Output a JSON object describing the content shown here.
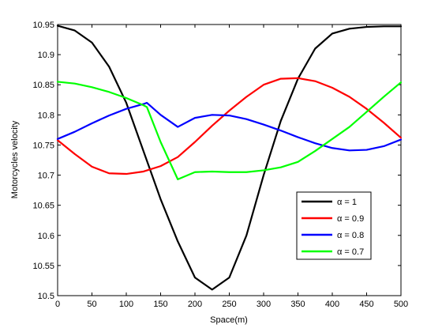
{
  "chart_data": {
    "type": "line",
    "xlabel": "Space(m)",
    "ylabel": "Motorcycles velocity",
    "xlim": [
      0,
      500
    ],
    "ylim": [
      10.5,
      10.95
    ],
    "xticks": [
      0,
      50,
      100,
      150,
      200,
      250,
      300,
      350,
      400,
      450,
      500
    ],
    "yticks": [
      10.5,
      10.55,
      10.6,
      10.65,
      10.7,
      10.75,
      10.8,
      10.85,
      10.9,
      10.95
    ],
    "xtick_labels": [
      "0",
      "50",
      "100",
      "150",
      "200",
      "250",
      "300",
      "350",
      "400",
      "450",
      "500"
    ],
    "ytick_labels": [
      "10.5",
      "10.55",
      "10.6",
      "10.65",
      "10.7",
      "10.75",
      "10.8",
      "10.85",
      "10.9",
      "10.95"
    ],
    "grid": false,
    "legend_position": "bottom-right",
    "series": [
      {
        "name": "α = 1",
        "color": "#000000",
        "x": [
          0,
          25,
          50,
          75,
          100,
          125,
          150,
          175,
          200,
          225,
          250,
          275,
          300,
          325,
          350,
          375,
          400,
          425,
          450,
          475,
          500
        ],
        "y": [
          10.948,
          10.94,
          10.92,
          10.88,
          10.82,
          10.74,
          10.66,
          10.59,
          10.53,
          10.51,
          10.53,
          10.6,
          10.7,
          10.79,
          10.86,
          10.91,
          10.935,
          10.943,
          10.946,
          10.947,
          10.947
        ]
      },
      {
        "name": "α = 0.9",
        "color": "#ff0000",
        "x": [
          0,
          25,
          50,
          75,
          100,
          125,
          150,
          175,
          200,
          225,
          250,
          275,
          300,
          325,
          350,
          375,
          400,
          425,
          450,
          475,
          500
        ],
        "y": [
          10.758,
          10.735,
          10.714,
          10.703,
          10.702,
          10.706,
          10.715,
          10.73,
          10.755,
          10.782,
          10.807,
          10.83,
          10.85,
          10.86,
          10.861,
          10.856,
          10.845,
          10.83,
          10.81,
          10.787,
          10.762
        ]
      },
      {
        "name": "α = 0.8",
        "color": "#0000ff",
        "x": [
          0,
          25,
          50,
          75,
          100,
          125,
          130,
          150,
          175,
          200,
          225,
          250,
          275,
          300,
          325,
          350,
          375,
          400,
          425,
          450,
          475,
          500
        ],
        "y": [
          10.76,
          10.772,
          10.786,
          10.799,
          10.81,
          10.818,
          10.82,
          10.8,
          10.78,
          10.795,
          10.8,
          10.799,
          10.793,
          10.784,
          10.774,
          10.763,
          10.753,
          10.745,
          10.741,
          10.742,
          10.748,
          10.759
        ]
      },
      {
        "name": "α = 0.7",
        "color": "#00ff00",
        "x": [
          0,
          25,
          50,
          75,
          100,
          125,
          130,
          150,
          175,
          200,
          225,
          250,
          275,
          300,
          325,
          350,
          375,
          400,
          425,
          450,
          475,
          500
        ],
        "y": [
          10.855,
          10.852,
          10.846,
          10.838,
          10.828,
          10.816,
          10.813,
          10.755,
          10.693,
          10.705,
          10.706,
          10.705,
          10.705,
          10.708,
          10.713,
          10.722,
          10.74,
          10.76,
          10.78,
          10.805,
          10.83,
          10.854
        ]
      }
    ]
  }
}
